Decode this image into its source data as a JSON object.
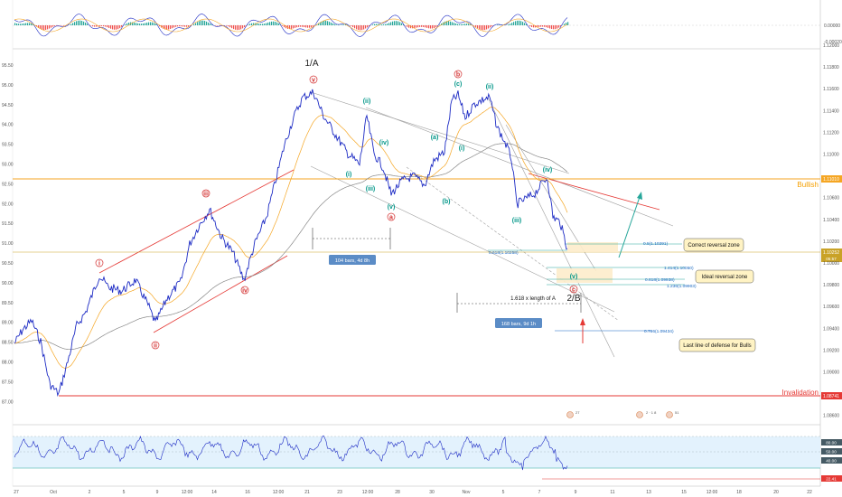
{
  "colors": {
    "price": "#1d2bc4",
    "ema_fast": "#f5a623",
    "ema_slow": "#888888",
    "channel": "#e53935",
    "gray_channel": "#9e9e9e",
    "invalidation": "#e53935",
    "bullish": "#f59f00",
    "current": "#c9a227",
    "wave_red": "#d32f2f",
    "wave_teal": "#009688",
    "fib": "#1565c0",
    "rsi_line": "#1d2bc4",
    "rsi_band": "#e3f2fd",
    "osc_up": "#26a69a",
    "osc_down": "#ef5350"
  },
  "left_axis": {
    "ticks": [
      "95.50",
      "95.00",
      "94.50",
      "94.00",
      "93.50",
      "93.00",
      "92.50",
      "92.00",
      "91.50",
      "91.00",
      "90.50",
      "90.00",
      "89.50",
      "89.00",
      "88.50",
      "88.00",
      "87.50",
      "87.00"
    ]
  },
  "right_axis": {
    "ticks": [
      "1.12000",
      "1.11800",
      "1.11600",
      "1.11400",
      "1.11200",
      "1.11000",
      "1.10800",
      "1.10600",
      "1.10400",
      "1.10200",
      "1.10000",
      "1.09800",
      "1.09600",
      "1.09400",
      "1.09200",
      "1.09000",
      "1.08800",
      "1.08600"
    ],
    "price_tag": "1.10252",
    "countdown": "05:57",
    "bullish_tag": "1.11010",
    "invalidation_tag": "1.08741"
  },
  "x_axis": {
    "ticks": [
      "27",
      "Oct",
      "2",
      "5",
      "9",
      "12:00",
      "14",
      "16",
      "12:00",
      "21",
      "23",
      "12:00",
      "28",
      "30",
      "Nov",
      "5",
      "7",
      "9",
      "11",
      "13",
      "15",
      "12:00",
      "18",
      "20",
      "22"
    ]
  },
  "oscillator_axis": {
    "ticks": [
      "0.00000",
      "-0.00020"
    ]
  },
  "rsi_axis": {
    "ticks": [
      "80.00",
      "50.00",
      "40.00",
      "22.41"
    ]
  },
  "labels": {
    "wave_1a": "1/A",
    "wave_2b": "2/B",
    "bullish": "Bullish",
    "invalidation": "Invalidation",
    "length_note": "1.618 x length of A",
    "bars_1": "104 bars, 4d 8h",
    "bars_2": "168 bars, 9d 1h"
  },
  "wave_labels": {
    "i": "i",
    "ii": "ii",
    "iii": "iii",
    "iv": "iv",
    "v": "v",
    "a": "a",
    "b": "b",
    "c": "c",
    "sub_ii": "(ii)",
    "sub_iv": "(iv)",
    "sub_i": "(i)",
    "sub_iii": "(iii)",
    "sub_v": "(v)",
    "sub_a": "(a)",
    "sub_b": "(b)",
    "sub_c": "(c)",
    "c_iii": "(iii)",
    "c_iv": "(iv)",
    "c_v": "(v)",
    "c_ii": "(ii)",
    "c_i": "(i)"
  },
  "fib_levels": {
    "f05": "0.5(1.10291)",
    "f618": "0.618(1.10258)",
    "f1414": "1.414(1.10050)",
    "f0618b": "0.618(1.09938)",
    "f1236": "1.236(1.09903)",
    "f0786": "0.786(1.09434)"
  },
  "callouts": {
    "correct": "Correct reversal zone",
    "ideal": "Ideal reversal zone",
    "last": "Last line of defense for Bulls"
  },
  "event_icons": {
    "e1": "27",
    "e2": "2 · 1 8",
    "e3": "51"
  },
  "chart_data": {
    "type": "line",
    "title": "",
    "xlabel": "",
    "ylabel": "",
    "ylim_right": [
      1.086,
      1.12
    ],
    "ylim_left": [
      87.0,
      95.5
    ],
    "series": [
      {
        "name": "",
        "x": [
          "27",
          "Oct",
          "2",
          "5",
          "9",
          "12:00",
          "14",
          "16",
          "12:00",
          "21",
          "23",
          "12:00",
          "28",
          "30",
          "Nov",
          "5",
          "7",
          "9"
        ],
        "values": [
          1.0905,
          1.0885,
          1.0958,
          1.0975,
          1.0962,
          1.0982,
          1.1005,
          1.0985,
          1.1052,
          1.1085,
          1.1108,
          1.1075,
          1.1098,
          1.1145,
          1.1142,
          1.1062,
          1.1048,
          1.1025
        ]
      }
    ],
    "horizontal_levels": [
      {
        "label": "Bullish",
        "value": 1.1101
      },
      {
        "label": "Invalidation",
        "value": 1.08741
      },
      {
        "label": "current",
        "value": 1.10252
      }
    ],
    "fibonacci": [
      {
        "ratio": 0.5,
        "value": 1.10291
      },
      {
        "ratio": 0.618,
        "value": 1.10258
      },
      {
        "ratio": 1.414,
        "value": 1.1005
      },
      {
        "ratio": 0.618,
        "value": 1.09938
      },
      {
        "ratio": 1.236,
        "value": 1.09903
      },
      {
        "ratio": 0.786,
        "value": 1.09434
      }
    ],
    "grid": false
  }
}
